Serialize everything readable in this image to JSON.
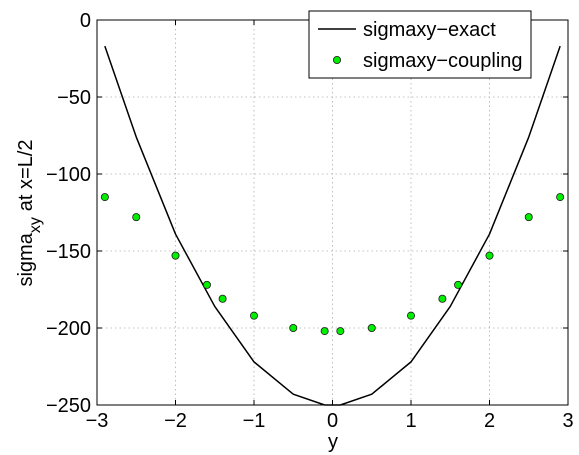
{
  "chart_data": {
    "type": "line",
    "xlabel": "y",
    "ylabel_parts": {
      "main": "sigma",
      "sub": "xy",
      "rest": "at x=L/2"
    },
    "xlim": [
      -3,
      3
    ],
    "ylim": [
      -250,
      0
    ],
    "xticks": [
      -3,
      -2,
      -1,
      0,
      1,
      2,
      3
    ],
    "xtick_labels": [
      "−3",
      "−2",
      "−1",
      "0",
      "1",
      "2",
      "3"
    ],
    "yticks": [
      0,
      -50,
      -100,
      -150,
      -200,
      -250
    ],
    "ytick_labels": [
      "0",
      "−50",
      "−100",
      "−150",
      "−200",
      "−250"
    ],
    "grid": true,
    "legend_position": "top-right",
    "series": [
      {
        "name": "sigmaxy−exact",
        "style": "line",
        "color": "#000000",
        "x": [
          -2.9,
          -2.5,
          -2.0,
          -1.5,
          -1.0,
          -0.5,
          -0.1,
          0.1,
          0.5,
          1.0,
          1.5,
          2.0,
          2.5,
          2.9
        ],
        "y": [
          -17,
          -76,
          -139,
          -186,
          -222,
          -243,
          -250,
          -250,
          -243,
          -222,
          -186,
          -139,
          -76,
          -17
        ]
      },
      {
        "name": "sigmaxy−coupling",
        "style": "markers",
        "color": "#00ee00",
        "edge_color": "#1a1a1a",
        "x": [
          -2.9,
          -2.5,
          -2.0,
          -1.6,
          -1.4,
          -1.0,
          -0.5,
          -0.1,
          0.1,
          0.5,
          1.0,
          1.4,
          1.6,
          2.0,
          2.5,
          2.9
        ],
        "y": [
          -115,
          -128,
          -153,
          -172,
          -181,
          -192,
          -200,
          -202,
          -202,
          -200,
          -192,
          -181,
          -172,
          -153,
          -128,
          -115
        ]
      }
    ]
  }
}
